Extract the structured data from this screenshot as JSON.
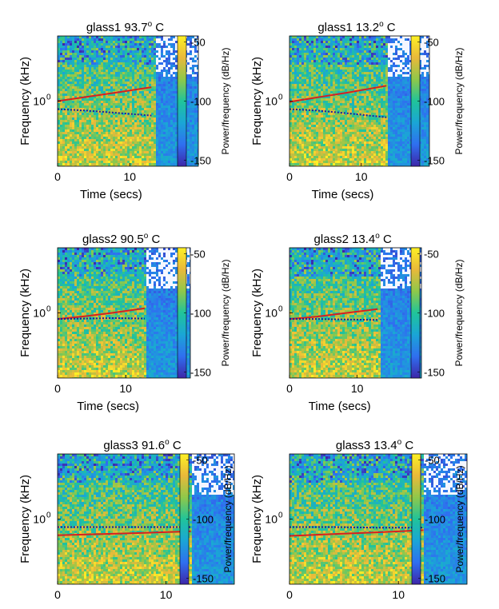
{
  "colorbar_ticks": [
    "-50",
    "-100",
    "-150"
  ],
  "colors": {
    "fit_curve": "#d62020",
    "dotted_curve": "#1a1aa8",
    "colormap": [
      "#3d26a8",
      "#2f6ff0",
      "#1aa6d6",
      "#20c49a",
      "#8fc84a",
      "#e9b93a",
      "#fdf024"
    ]
  },
  "chart_data": [
    {
      "type": "heatmap",
      "title": "glass1  93.7",
      "title_sup": "o",
      "title_unit": " C",
      "xlabel": "Time (secs)",
      "ylabel": "Frequency (kHz)",
      "colorbar_label": "Power/frequency (dB/Hz)",
      "x_ticks": [
        {
          "label": "0",
          "value": 0
        },
        {
          "label": "10",
          "value": 10
        }
      ],
      "y_ticks": [
        {
          "label": "10",
          "sup": "0",
          "value": 1
        }
      ],
      "xlim": [
        0,
        19.5
      ],
      "yscale": "log",
      "ylim": [
        0.2,
        5
      ],
      "clim": [
        -155,
        -45
      ],
      "signal_end": 13.5,
      "series": [
        {
          "style": "solid",
          "x": [
            0,
            4,
            8,
            13
          ],
          "y": [
            1.0,
            1.11,
            1.23,
            1.41
          ]
        },
        {
          "style": "dotted",
          "x": [
            0,
            4,
            8,
            13
          ],
          "y": [
            0.82,
            0.79,
            0.75,
            0.7
          ]
        }
      ]
    },
    {
      "type": "heatmap",
      "title": "glass1  13.2",
      "title_sup": "o",
      "title_unit": " C",
      "xlabel": "Time (secs)",
      "ylabel": "Frequency (kHz)",
      "colorbar_label": "Power/frequency (dB/Hz)",
      "x_ticks": [
        {
          "label": "0",
          "value": 0
        },
        {
          "label": "10",
          "value": 10
        }
      ],
      "y_ticks": [
        {
          "label": "10",
          "sup": "0",
          "value": 1
        }
      ],
      "xlim": [
        0,
        19.5
      ],
      "yscale": "log",
      "ylim": [
        0.2,
        5
      ],
      "clim": [
        -155,
        -45
      ],
      "signal_end": 13.5,
      "series": [
        {
          "style": "solid",
          "x": [
            0,
            4,
            8,
            13.5
          ],
          "y": [
            0.98,
            1.1,
            1.23,
            1.46
          ]
        },
        {
          "style": "dotted",
          "x": [
            0,
            4,
            8,
            13.5
          ],
          "y": [
            0.82,
            0.79,
            0.74,
            0.67
          ]
        }
      ]
    },
    {
      "type": "heatmap",
      "title": "glass2  90.5",
      "title_sup": "o",
      "title_unit": " C",
      "xlabel": "Time (secs)",
      "ylabel": "Frequency (kHz)",
      "colorbar_label": "Power/frequency (dB/Hz)",
      "x_ticks": [
        {
          "label": "0",
          "value": 0
        },
        {
          "label": "10",
          "value": 10
        }
      ],
      "y_ticks": [
        {
          "label": "10",
          "sup": "0",
          "value": 1
        }
      ],
      "xlim": [
        0,
        19.5
      ],
      "yscale": "log",
      "ylim": [
        0.2,
        5
      ],
      "clim": [
        -155,
        -45
      ],
      "signal_end": 12.8,
      "series": [
        {
          "style": "solid",
          "x": [
            0,
            4,
            8,
            12.8
          ],
          "y": [
            0.86,
            0.92,
            1.0,
            1.12
          ]
        },
        {
          "style": "dotted",
          "x": [
            0,
            4,
            8,
            12.8
          ],
          "y": [
            0.86,
            0.87,
            0.88,
            0.87
          ]
        }
      ]
    },
    {
      "type": "heatmap",
      "title": "glass2  13.4",
      "title_sup": "o",
      "title_unit": " C",
      "xlabel": "Time (secs)",
      "ylabel": "Frequency (kHz)",
      "colorbar_label": "Power/frequency (dB/Hz)",
      "x_ticks": [
        {
          "label": "0",
          "value": 0
        },
        {
          "label": "10",
          "value": 10
        }
      ],
      "y_ticks": [
        {
          "label": "10",
          "sup": "0",
          "value": 1
        }
      ],
      "xlim": [
        0,
        19.5
      ],
      "yscale": "log",
      "ylim": [
        0.2,
        5
      ],
      "clim": [
        -155,
        -45
      ],
      "signal_end": 13.2,
      "series": [
        {
          "style": "solid",
          "x": [
            0,
            4,
            8,
            13
          ],
          "y": [
            0.86,
            0.91,
            0.99,
            1.1
          ]
        },
        {
          "style": "dotted",
          "x": [
            0,
            4,
            8,
            13
          ],
          "y": [
            0.86,
            0.86,
            0.85,
            0.84
          ]
        }
      ]
    },
    {
      "type": "heatmap",
      "title": "glass3  91.6",
      "title_sup": "o",
      "title_unit": " C",
      "xlabel": "",
      "ylabel": "Frequency (kHz)",
      "colorbar_label": "Power/frequency (dB/Hz)",
      "x_ticks": [
        {
          "label": "0",
          "value": 0
        },
        {
          "label": "10",
          "value": 10
        }
      ],
      "y_ticks": [
        {
          "label": "10",
          "sup": "0",
          "value": 1
        }
      ],
      "xlim": [
        0,
        16.3
      ],
      "yscale": "log",
      "ylim": [
        0.2,
        5
      ],
      "clim": [
        -155,
        -45
      ],
      "signal_end": 12.3,
      "series": [
        {
          "style": "solid",
          "x": [
            0,
            4,
            8,
            12.3
          ],
          "y": [
            0.67,
            0.69,
            0.71,
            0.74
          ]
        },
        {
          "style": "dotted",
          "x": [
            0,
            4,
            8,
            12.3
          ],
          "y": [
            0.82,
            0.82,
            0.82,
            0.82
          ]
        }
      ]
    },
    {
      "type": "heatmap",
      "title": "glass3  13.4",
      "title_sup": "o",
      "title_unit": " C",
      "xlabel": "",
      "ylabel": "Frequency (kHz)",
      "colorbar_label": "Power/frequency (dB/Hz)",
      "x_ticks": [
        {
          "label": "0",
          "value": 0
        },
        {
          "label": "10",
          "value": 10
        }
      ],
      "y_ticks": [
        {
          "label": "10",
          "sup": "0",
          "value": 1
        }
      ],
      "xlim": [
        0,
        16.3
      ],
      "yscale": "log",
      "ylim": [
        0.2,
        5
      ],
      "clim": [
        -155,
        -45
      ],
      "signal_end": 12.3,
      "series": [
        {
          "style": "solid",
          "x": [
            0,
            4,
            8,
            12.3
          ],
          "y": [
            0.66,
            0.69,
            0.72,
            0.76
          ]
        },
        {
          "style": "dotted",
          "x": [
            0,
            4,
            8,
            12.3
          ],
          "y": [
            0.82,
            0.82,
            0.81,
            0.81
          ]
        }
      ]
    }
  ]
}
